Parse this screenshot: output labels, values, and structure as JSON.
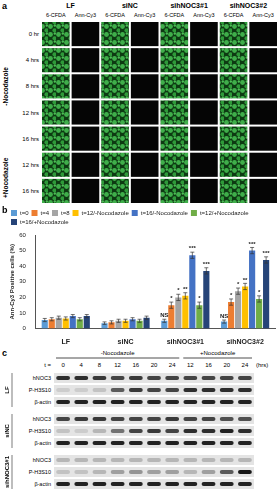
{
  "panel_a": {
    "label": "a",
    "groups": [
      "LF",
      "siNC",
      "sihNOC3#1",
      "sihNOC3#2"
    ],
    "channels": [
      "6-CFDA",
      "Ann-Cy3"
    ],
    "row_groups": [
      {
        "name": "-Nocodazole",
        "rows": [
          "0 hr",
          "4 hrs",
          "8 hrs",
          "12 hrs",
          "16 hrs"
        ]
      },
      {
        "name": "+Nocodazole",
        "rows": [
          "12 hrs",
          "16 hrs"
        ]
      }
    ]
  },
  "chart_data": {
    "label": "b",
    "type": "bar",
    "y_label": "Ann-Cy3 Positive cells (%)",
    "categories": [
      "LF",
      "siNC",
      "sihNOC3#1",
      "sihNOC3#2"
    ],
    "series": [
      {
        "name": "t=0",
        "color": "#5b9bd5",
        "values": [
          5.5,
          3.5,
          5,
          4.5
        ],
        "errors": [
          1,
          0.8,
          1,
          1
        ],
        "annotations": [
          null,
          null,
          "NS",
          "NS"
        ]
      },
      {
        "name": "t=4",
        "color": "#ed7d31",
        "values": [
          6,
          4,
          15,
          17
        ],
        "errors": [
          1,
          1,
          2,
          2
        ],
        "annotations": [
          null,
          null,
          "*",
          "*"
        ]
      },
      {
        "name": "t=8",
        "color": "#a5a5a5",
        "values": [
          7,
          5,
          20,
          24
        ],
        "errors": [
          1,
          1,
          2,
          2
        ],
        "annotations": [
          null,
          null,
          "*",
          "*"
        ]
      },
      {
        "name": "t=12/-Nocodazole",
        "color": "#ffc000",
        "values": [
          6.5,
          5,
          21,
          27
        ],
        "errors": [
          1,
          1,
          2,
          2
        ],
        "annotations": [
          null,
          null,
          "**",
          "**"
        ]
      },
      {
        "name": "t=16/-Nocodazole",
        "color": "#4472c4",
        "values": [
          8,
          6,
          47,
          50
        ],
        "errors": [
          1,
          1,
          2,
          2
        ],
        "annotations": [
          null,
          null,
          "***",
          "***"
        ]
      },
      {
        "name": "t=12/+Nocodazole",
        "color": "#70ad47",
        "values": [
          6,
          5,
          15,
          19
        ],
        "errors": [
          1,
          1,
          2,
          2
        ],
        "annotations": [
          null,
          null,
          "*",
          "*"
        ]
      },
      {
        "name": "t=16/+Nocodazole",
        "color": "#264478",
        "values": [
          8,
          7,
          37,
          44
        ],
        "errors": [
          1,
          1,
          2,
          2
        ],
        "annotations": [
          null,
          null,
          "***",
          "***"
        ]
      }
    ],
    "ylim": [
      0,
      60
    ],
    "yticks": [
      0,
      10,
      20,
      30,
      40,
      50,
      60
    ],
    "grid": false,
    "legend": "top-left"
  },
  "panel_c": {
    "label": "c",
    "time_label": "t =",
    "unit": "(hrs)",
    "conditions": [
      {
        "name": "-Nocodazole",
        "times": [
          0,
          4,
          8,
          12,
          16,
          20,
          24
        ]
      },
      {
        "name": "+Nocodazole",
        "times": [
          12,
          16,
          20,
          24
        ]
      }
    ],
    "groups": [
      {
        "name": "LF",
        "rows": [
          {
            "name": "hNOC3",
            "bands": [
              0.8,
              0.8,
              0.75,
              0.7,
              0.75,
              0.7,
              0.7,
              0.7,
              0.7,
              0.7,
              0.7
            ]
          },
          {
            "name": "P-H3S10",
            "bands": [
              0.1,
              0.1,
              0.15,
              0.6,
              0.75,
              0.7,
              0.7,
              0.8,
              0.8,
              0.8,
              0.8
            ]
          },
          {
            "name": "β-actin",
            "bands": [
              0.85,
              0.85,
              0.85,
              0.85,
              0.85,
              0.85,
              0.85,
              0.85,
              0.85,
              0.85,
              0.85
            ]
          }
        ]
      },
      {
        "name": "siNC",
        "rows": [
          {
            "name": "hNOC3",
            "bands": [
              0.7,
              0.75,
              0.75,
              0.7,
              0.7,
              0.7,
              0.75,
              0.7,
              0.7,
              0.65,
              0.65
            ]
          },
          {
            "name": "P-H3S10",
            "bands": [
              0.15,
              0.1,
              0.2,
              0.5,
              0.7,
              0.75,
              0.7,
              0.8,
              0.8,
              0.85,
              0.8
            ]
          },
          {
            "name": "β-actin",
            "bands": [
              0.85,
              0.85,
              0.85,
              0.85,
              0.85,
              0.85,
              0.85,
              0.85,
              0.85,
              0.85,
              0.85
            ]
          }
        ]
      },
      {
        "name": "sihNOC3#1",
        "rows": [
          {
            "name": "hNOC3",
            "bands": [
              0.2,
              0.2,
              0.2,
              0.2,
              0.2,
              0.2,
              0.2,
              0.2,
              0.2,
              0.2,
              0.2
            ]
          },
          {
            "name": "P-H3S10",
            "bands": [
              0.15,
              0.15,
              0.2,
              0.3,
              0.35,
              0.3,
              0.3,
              0.2,
              0.3,
              0.6,
              0.9
            ]
          },
          {
            "name": "β-actin",
            "bands": [
              0.85,
              0.85,
              0.85,
              0.85,
              0.85,
              0.85,
              0.85,
              0.85,
              0.85,
              0.85,
              0.85
            ]
          }
        ]
      }
    ]
  }
}
